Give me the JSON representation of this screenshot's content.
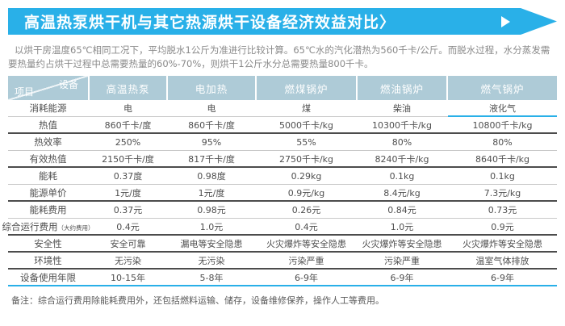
{
  "banner": {
    "title": "高温热泵烘干机与其它热源烘干设备经济效益对比〉",
    "play_icon": "right-pointing-triangle"
  },
  "intro": {
    "text": "以烘干房温度65℃相同工况下，平均脱水1公斤为准进行比较计算。65℃水的汽化潜热为560千卡/公斤。而脱水过程，水分蒸发需要热量约占烘干过程中总需要热量的60%-70%，则烘干1公斤水分总需要热量800千卡。"
  },
  "chart_data": {
    "type": "table",
    "title": "高温热泵烘干机与其它热源烘干设备经济效益对比",
    "corner": {
      "top_right": "设备",
      "bottom_left": "项目"
    },
    "columns": [
      "高温热泵",
      "电加热",
      "燃煤锅炉",
      "燃油锅炉",
      "燃气锅炉"
    ],
    "rows": [
      {
        "label": "消耗能源",
        "note": "",
        "values": [
          "电",
          "电",
          "煤",
          "柴油",
          "液化气"
        ],
        "sep": "thin",
        "highlight_last": true
      },
      {
        "label": "热值",
        "note": "",
        "values": [
          "860千卡/度",
          "860千卡/度",
          "5000千卡/kg",
          "10300千卡/kg",
          "10800千卡/kg"
        ],
        "sep": "dark",
        "highlight_last": false
      },
      {
        "label": "热效率",
        "note": "",
        "values": [
          "250%",
          "95%",
          "55%",
          "80%",
          "80%"
        ],
        "sep": "thin",
        "highlight_last": false
      },
      {
        "label": "有效热值",
        "note": "",
        "values": [
          "2150千卡/度",
          "817千卡/度",
          "2750千卡/kg",
          "8240千卡/kg",
          "8640千卡/kg"
        ],
        "sep": "dark",
        "highlight_last": false
      },
      {
        "label": "能耗",
        "note": "",
        "values": [
          "0.37度",
          "0.98度",
          "0.29kg",
          "0.1kg",
          "0.1kg"
        ],
        "sep": "thin",
        "highlight_last": false
      },
      {
        "label": "能源单价",
        "note": "",
        "values": [
          "1元/度",
          "1元/度",
          "0.9元/kg",
          "8.4元/kg",
          "7.3元/kg"
        ],
        "sep": "dark",
        "highlight_last": false
      },
      {
        "label": "能耗费用",
        "note": "",
        "values": [
          "0.37元",
          "0.98元",
          "0.26元",
          "0.84元",
          "0.73元"
        ],
        "sep": "thin",
        "highlight_last": false
      },
      {
        "label": "综合运行费用",
        "note": "（大约费用）",
        "values": [
          "0.4元",
          "1.0元",
          "0.4元",
          "1.0元",
          "0.9元"
        ],
        "sep": "dark",
        "highlight_last": false
      },
      {
        "label": "安全性",
        "note": "",
        "values": [
          "安全可靠",
          "漏电等安全隐患",
          "火灾爆炸等安全隐患",
          "火灾爆炸等安全隐患",
          "火灾爆炸等安全隐患"
        ],
        "sep": "dark",
        "highlight_last": false
      },
      {
        "label": "环境性",
        "note": "",
        "values": [
          "无污染",
          "无污染",
          "污染严重",
          "污染严重",
          "温室气体排放"
        ],
        "sep": "dark",
        "highlight_last": false
      },
      {
        "label": "设备使用年限",
        "note": "",
        "values": [
          "10-15年",
          "5-8年",
          "6-9年",
          "6-9年",
          "6-9年"
        ],
        "sep": "accent",
        "highlight_last": false
      }
    ]
  },
  "footnote": "备注：综合运行费用除能耗费用外，还包括燃料运输、储存，设备维修保养，操作人工等费用。",
  "colors": {
    "accent": "#29b0e8",
    "header_bg": "#aecbd7",
    "dark_line": "#4c4c4c",
    "light_line": "#c9c9c9",
    "body_text": "#4f4f4f",
    "intro_text": "#8a8a8a"
  }
}
